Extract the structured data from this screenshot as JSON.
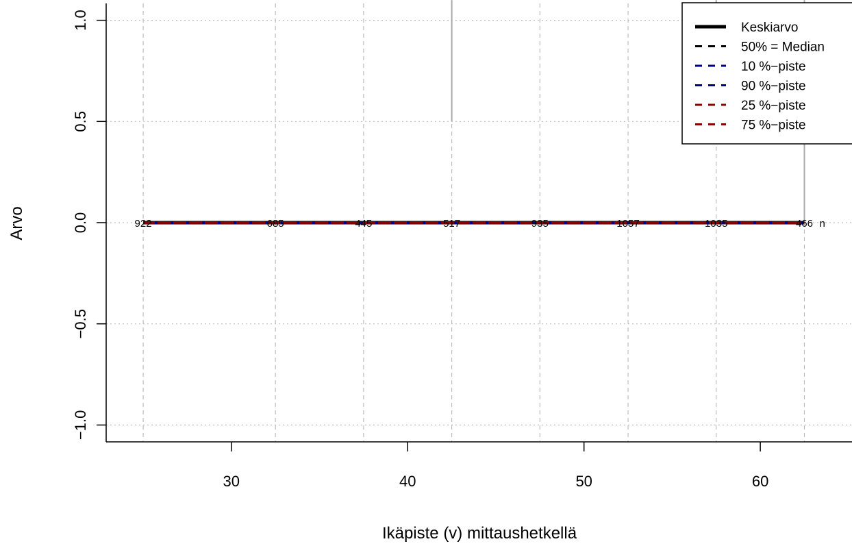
{
  "chart_data": {
    "type": "line",
    "title": "",
    "xlabel": "Ikäpiste (v) mittaushetkellä",
    "ylabel": "Arvo",
    "xlim": [
      22.9,
      65.2
    ],
    "ylim": [
      -1.0,
      1.0
    ],
    "xticks": [
      30,
      40,
      50,
      60
    ],
    "xtick_labels": [
      "30",
      "40",
      "50",
      "60"
    ],
    "yticks": [
      -1.0,
      -0.5,
      0.0,
      0.5,
      1.0
    ],
    "ytick_labels": [
      "−1.0",
      "−0.5",
      "0.0",
      "0.5",
      "1.0"
    ],
    "grid": true,
    "grid_dashed_x": [
      25,
      32.5,
      37.5,
      42.5,
      47.5,
      52.5,
      57.5,
      62.5
    ],
    "legend_position": "top-right",
    "x": [
      25,
      32.5,
      37.5,
      42.5,
      47.5,
      52.5,
      57.5,
      62.5
    ],
    "n_values": [
      922,
      685,
      445,
      517,
      935,
      1057,
      1035,
      466
    ],
    "n_suffix": "n",
    "series": [
      {
        "name": "Keskiarvo",
        "values": [
          0,
          0,
          0,
          0,
          0,
          0,
          0,
          0
        ],
        "color": "#000000",
        "style": "solid-thick"
      },
      {
        "name": "50% = Median",
        "values": [
          0,
          0,
          0,
          0,
          0,
          0,
          0,
          0
        ],
        "color": "#000000",
        "style": "dashed"
      },
      {
        "name": "10 %−piste",
        "values": [
          0,
          0,
          0,
          0,
          0,
          0,
          0,
          0
        ],
        "color": "#00008b",
        "style": "dashed"
      },
      {
        "name": "90 %−piste",
        "values": [
          0,
          0,
          0,
          0,
          0,
          0,
          0,
          0
        ],
        "color": "#00008b",
        "style": "dashed"
      },
      {
        "name": "25 %−piste",
        "values": [
          0,
          0,
          0,
          0,
          0,
          0,
          0,
          0
        ],
        "color": "#8b0000",
        "style": "dashed"
      },
      {
        "name": "75 %−piste",
        "values": [
          0,
          0,
          0,
          0,
          0,
          0,
          0,
          0
        ],
        "color": "#8b0000",
        "style": "dashed"
      }
    ],
    "vertical_segments": [
      {
        "x": 42.5,
        "y0": 0.5,
        "y1": 1.1
      },
      {
        "x": 57.5,
        "y0": 0.62,
        "y1": 1.1
      },
      {
        "x": 62.5,
        "y0": 0.0,
        "y1": 1.1
      }
    ],
    "colors": {
      "grid": "#bebebe",
      "segment": "#a9a9a9",
      "axis": "#000000"
    }
  }
}
